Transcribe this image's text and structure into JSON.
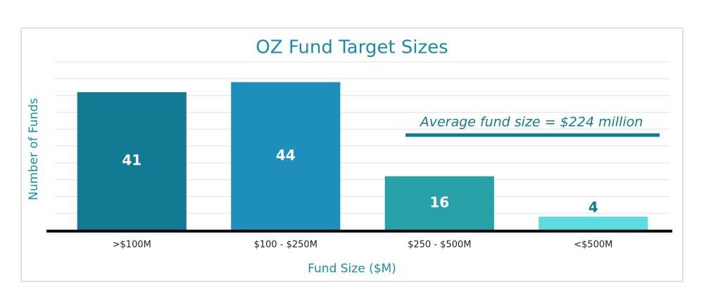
{
  "chart_data": {
    "type": "bar",
    "title": "OZ Fund Target Sizes",
    "x_label": "Fund Size ($M)",
    "y_label": "Number of Funds",
    "categories": [
      ">$100M",
      "$100 - $250M",
      "$250 - $500M",
      "<$500M"
    ],
    "values": [
      41,
      44,
      16,
      4
    ],
    "colors": [
      "#137a94",
      "#1e8fbb",
      "#27a0a8",
      "#5edbe0"
    ],
    "annotation": "Average fund size = $224 million",
    "ylim": [
      0,
      50
    ],
    "yticks": [
      0,
      5,
      10,
      15,
      20,
      25,
      30,
      35,
      40,
      45,
      50
    ],
    "grid": true
  }
}
